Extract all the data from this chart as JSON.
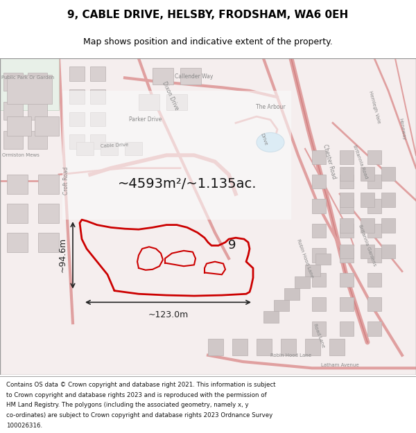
{
  "title_line1": "9, CABLE DRIVE, HELSBY, FRODSHAM, WA6 0EH",
  "title_line2": "Map shows position and indicative extent of the property.",
  "area_text": "~4593m²/~1.135ac.",
  "label_9": "9",
  "dim_width": "~123.0m",
  "dim_height": "~94.6m",
  "footer_lines": [
    "Contains OS data © Crown copyright and database right 2021. This information is subject",
    "to Crown copyright and database rights 2023 and is reproduced with the permission of",
    "HM Land Registry. The polygons (including the associated geometry, namely x, y",
    "co-ordinates) are subject to Crown copyright and database rights 2023 Ordnance Survey",
    "100026316."
  ],
  "map_bg": "#f5eeee",
  "title_bg": "#ffffff",
  "footer_bg": "#ffffff",
  "red_color": "#cc0000",
  "road_color": "#e0a0a0",
  "road_color2": "#d08080",
  "building_color": "#d8d0d0",
  "building_outline": "#b8b0b0",
  "park_color": "#e8f0e8",
  "park_outline": "#c0d0c0",
  "pond_color": "#b0d8f0",
  "pond_outline": "#90b8d0",
  "dim_color": "#222222",
  "road_text_color": "#888888",
  "figsize": [
    6.0,
    6.25
  ],
  "dpi": 100
}
